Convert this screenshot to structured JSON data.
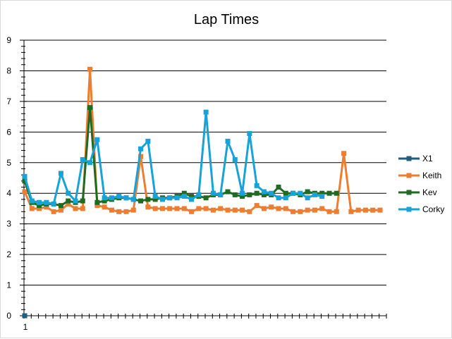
{
  "chart_data": {
    "type": "line",
    "title": "Lap Times",
    "xlabel": "",
    "ylabel": "",
    "ylim": [
      0,
      9
    ],
    "yticks": [
      0,
      1,
      2,
      3,
      4,
      5,
      6,
      7,
      8,
      9
    ],
    "xtick_labels": [
      "1"
    ],
    "grid": "horizontal",
    "legend_position": "right",
    "n_points": 47,
    "series": [
      {
        "name": "X1",
        "color": "#1f5e80",
        "values": [
          0
        ]
      },
      {
        "name": "Keith",
        "color": "#ed7d31",
        "values": [
          4.05,
          3.5,
          3.5,
          3.55,
          3.4,
          3.45,
          3.65,
          3.5,
          3.5,
          8.05,
          3.6,
          3.55,
          3.45,
          3.4,
          3.4,
          3.45,
          5.2,
          3.55,
          3.5,
          3.5,
          3.5,
          3.5,
          3.5,
          3.4,
          3.5,
          3.5,
          3.45,
          3.5,
          3.45,
          3.45,
          3.45,
          3.4,
          3.6,
          3.5,
          3.55,
          3.5,
          3.5,
          3.4,
          3.4,
          3.45,
          3.45,
          3.5,
          3.4,
          3.4,
          5.3,
          3.4,
          3.45,
          3.45,
          3.45,
          3.45
        ]
      },
      {
        "name": "Kev",
        "color": "#1e6b22",
        "values": [
          4.4,
          3.7,
          3.6,
          3.65,
          3.65,
          3.6,
          3.75,
          3.7,
          3.75,
          6.8,
          3.7,
          3.75,
          3.8,
          3.85,
          3.85,
          3.8,
          3.75,
          3.8,
          3.8,
          3.85,
          3.85,
          3.9,
          4.0,
          3.9,
          3.9,
          3.85,
          3.95,
          3.95,
          4.05,
          3.95,
          3.9,
          3.95,
          4.0,
          3.95,
          3.95,
          4.2,
          4.0,
          4.0,
          3.95,
          4.05,
          4.0,
          4.0,
          4.0,
          4.0
        ]
      },
      {
        "name": "Corky",
        "color": "#17a2d8",
        "values": [
          4.55,
          3.75,
          3.7,
          3.7,
          3.65,
          4.65,
          4.0,
          3.75,
          5.1,
          5.0,
          5.75,
          3.85,
          3.85,
          3.9,
          3.85,
          3.8,
          5.45,
          5.7,
          3.9,
          3.8,
          3.85,
          3.85,
          3.9,
          3.8,
          3.95,
          6.65,
          4.0,
          3.95,
          5.7,
          5.1,
          4.0,
          5.95,
          4.25,
          4.05,
          4.0,
          3.85,
          3.85,
          4.0,
          4.0,
          3.85,
          3.95,
          3.9
        ]
      }
    ]
  }
}
